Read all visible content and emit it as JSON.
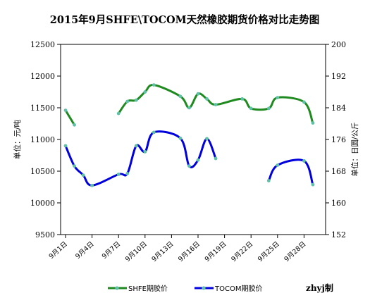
{
  "chart_data": {
    "type": "line",
    "title": "2015年9月SHFE\\TOCOM天然橡胶期货价格对比走势图",
    "ylabel_left": "单位：元/吨",
    "ylabel_right": "单位：日圆/公斤",
    "yticks_left": [
      "12500",
      "12000",
      "11500",
      "11000",
      "10500",
      "10000",
      "9500"
    ],
    "yticks_right": [
      "200",
      "192",
      "184",
      "176",
      "168",
      "160",
      "152"
    ],
    "ylim_left": [
      9500,
      12500
    ],
    "ylim_right": [
      152,
      200
    ],
    "x_range": [
      1,
      31
    ],
    "xticks": [
      {
        "day": 1,
        "label": "9月1日"
      },
      {
        "day": 4,
        "label": "9月4日"
      },
      {
        "day": 7,
        "label": "9月7日"
      },
      {
        "day": 10,
        "label": "9月10日"
      },
      {
        "day": 13,
        "label": "9月13日"
      },
      {
        "day": 16,
        "label": "9月16日"
      },
      {
        "day": 19,
        "label": "9月19日"
      },
      {
        "day": 22,
        "label": "9月22日"
      },
      {
        "day": 25,
        "label": "9月25日"
      },
      {
        "day": 28,
        "label": "9月28日"
      }
    ],
    "grid": false,
    "legend_position": "bottom",
    "series": [
      {
        "name": "SHFE期胶价",
        "axis": "left",
        "color": "#1f8a1f",
        "marker_color": "#5fc0a8",
        "segments": [
          [
            [
              1,
              11460
            ],
            [
              2,
              11230
            ]
          ],
          [
            [
              7,
              11410
            ],
            [
              8,
              11600
            ],
            [
              9,
              11620
            ],
            [
              10,
              11750
            ],
            [
              11,
              11860
            ],
            [
              14,
              11680
            ],
            [
              15,
              11500
            ],
            [
              16,
              11720
            ],
            [
              17,
              11640
            ],
            [
              18,
              11550
            ],
            [
              21,
              11640
            ],
            [
              22,
              11490
            ],
            [
              24,
              11490
            ],
            [
              25,
              11660
            ],
            [
              28,
              11590
            ],
            [
              29,
              11260
            ]
          ]
        ]
      },
      {
        "name": "TOCOM期胶价",
        "axis": "right",
        "color": "#0000dd",
        "marker_color": "#5fc0a8",
        "segments": [
          [
            [
              1,
              174.4
            ],
            [
              2,
              169.3
            ],
            [
              3,
              167.0
            ],
            [
              4,
              164.4
            ],
            [
              7,
              167.2
            ],
            [
              8,
              167.4
            ],
            [
              9,
              174.4
            ],
            [
              10,
              172.9
            ],
            [
              11,
              177.8
            ],
            [
              14,
              176.3
            ],
            [
              15,
              169.3
            ],
            [
              16,
              170.8
            ],
            [
              17,
              176.2
            ],
            [
              18,
              171.2
            ]
          ],
          [
            [
              24,
              165.6
            ],
            [
              25,
              169.5
            ],
            [
              28,
              170.6
            ],
            [
              29,
              164.6
            ]
          ]
        ]
      }
    ]
  },
  "footer": {
    "credit": "zhyj制"
  }
}
